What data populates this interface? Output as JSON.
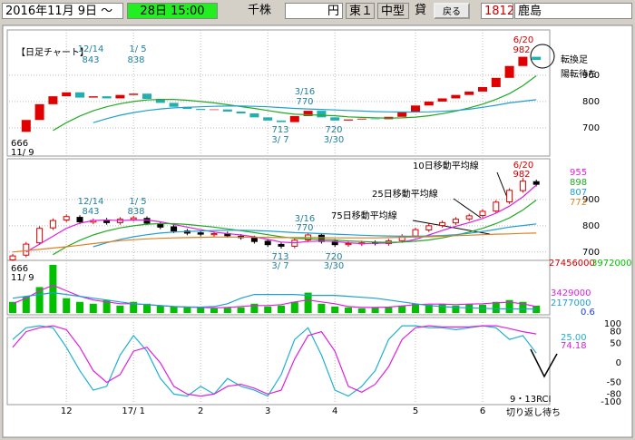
{
  "toolbar": {
    "date_from": "2016年11月 9日 ～",
    "date_to": "28日 15:00",
    "unit": "千株",
    "currency": "円",
    "market": "東１",
    "size": "中型",
    "credit": "貸",
    "back": "戻る",
    "code": "1812",
    "name": "鹿島"
  },
  "chart_data": [
    {
      "type": "brick",
      "title": "【日足チャート】",
      "up_color": "#e00000",
      "down_color": "#20b0b0",
      "values": [
        685,
        730,
        790,
        820,
        835,
        815,
        820,
        812,
        825,
        830,
        810,
        795,
        780,
        772,
        768,
        770,
        762,
        755,
        740,
        728,
        722,
        745,
        765,
        740,
        728,
        732,
        735,
        733,
        742,
        760,
        785,
        800,
        812,
        825,
        838,
        855,
        890,
        935,
        970,
        958
      ],
      "series": [
        {
          "color": "#22aa22",
          "values": [
            null,
            null,
            null,
            690,
            720,
            745,
            765,
            780,
            792,
            800,
            806,
            808,
            808,
            805,
            800,
            795,
            788,
            781,
            774,
            766,
            758,
            752,
            750,
            748,
            746,
            742,
            740,
            738,
            737,
            738,
            741,
            746,
            754,
            764,
            776,
            790,
            808,
            830,
            860,
            898
          ]
        },
        {
          "color": "#20a0d0",
          "values": [
            null,
            null,
            null,
            null,
            null,
            null,
            720,
            735,
            748,
            758,
            766,
            772,
            776,
            778,
            780,
            782,
            783,
            783,
            782,
            780,
            777,
            774,
            772,
            770,
            768,
            766,
            764,
            762,
            761,
            760,
            760,
            761,
            763,
            766,
            771,
            778,
            786,
            795,
            801,
            807
          ]
        }
      ],
      "ylim": [
        600,
        1065
      ],
      "yticks": [
        700,
        800,
        900
      ],
      "grid": true,
      "annotations": [
        "12/14",
        "843",
        "1/ 5",
        "838",
        "3/16",
        "770",
        "713",
        "3/ 7",
        "720",
        "3/30",
        "666",
        "11/ 9",
        "6/20",
        "982",
        "転換足",
        "陽転待ち"
      ]
    },
    {
      "type": "candlestick",
      "up_color": "#e00000",
      "down_color": "#000000",
      "open": [
        670,
        688,
        735,
        792,
        822,
        832,
        814,
        822,
        812,
        824,
        828,
        808,
        796,
        780,
        773,
        766,
        770,
        760,
        754,
        741,
        729,
        722,
        746,
        764,
        741,
        728,
        731,
        736,
        732,
        743,
        761,
        784,
        801,
        811,
        826,
        839,
        856,
        891,
        934,
        968
      ],
      "high": [
        693,
        738,
        798,
        828,
        843,
        840,
        828,
        830,
        833,
        838,
        836,
        816,
        804,
        788,
        781,
        778,
        778,
        768,
        762,
        749,
        737,
        753,
        770,
        772,
        749,
        740,
        743,
        744,
        750,
        768,
        793,
        808,
        820,
        833,
        846,
        863,
        898,
        943,
        982,
        976
      ],
      "low": [
        666,
        680,
        727,
        784,
        814,
        807,
        806,
        804,
        804,
        816,
        802,
        787,
        772,
        764,
        760,
        758,
        754,
        747,
        732,
        720,
        713,
        714,
        738,
        732,
        720,
        720,
        723,
        725,
        724,
        735,
        753,
        776,
        793,
        803,
        818,
        831,
        848,
        883,
        926,
        950
      ],
      "close": [
        685,
        730,
        790,
        820,
        835,
        815,
        820,
        812,
        825,
        830,
        810,
        795,
        780,
        772,
        768,
        770,
        762,
        755,
        740,
        728,
        722,
        745,
        765,
        740,
        728,
        732,
        735,
        733,
        742,
        760,
        785,
        800,
        812,
        825,
        838,
        855,
        890,
        935,
        970,
        958
      ],
      "series": [
        {
          "name": "10日移動平均線",
          "color": "#e020e0",
          "values": [
            null,
            700,
            730,
            760,
            790,
            810,
            820,
            822,
            820,
            822,
            822,
            815,
            805,
            795,
            785,
            776,
            770,
            765,
            758,
            748,
            738,
            735,
            740,
            742,
            740,
            735,
            732,
            733,
            734,
            738,
            748,
            765,
            782,
            798,
            812,
            828,
            848,
            875,
            910,
            955
          ]
        },
        {
          "name": "25日移動平均線",
          "color": "#22aa22",
          "values": [
            null,
            null,
            null,
            690,
            720,
            745,
            765,
            780,
            792,
            800,
            806,
            808,
            808,
            805,
            800,
            795,
            788,
            781,
            774,
            766,
            758,
            752,
            750,
            748,
            746,
            742,
            740,
            738,
            737,
            738,
            741,
            746,
            754,
            764,
            776,
            790,
            808,
            830,
            860,
            898
          ]
        },
        {
          "name": "75日移動平均線",
          "color": "#20a0d0",
          "values": [
            null,
            null,
            null,
            null,
            null,
            null,
            720,
            735,
            748,
            758,
            766,
            772,
            776,
            778,
            780,
            782,
            783,
            783,
            782,
            780,
            777,
            774,
            772,
            770,
            768,
            766,
            764,
            762,
            761,
            760,
            760,
            761,
            763,
            766,
            771,
            778,
            786,
            795,
            801,
            807
          ]
        },
        {
          "color": "#e08020",
          "values": [
            700,
            705,
            710,
            715,
            720,
            726,
            732,
            738,
            743,
            747,
            750,
            752,
            754,
            755,
            756,
            757,
            757,
            757,
            756,
            756,
            755,
            755,
            755,
            755,
            754,
            754,
            754,
            754,
            755,
            756,
            757,
            758,
            760,
            762,
            764,
            766,
            768,
            769,
            771,
            772
          ]
        }
      ],
      "ylim": [
        675,
        1045
      ],
      "yticks": [
        700,
        800,
        900
      ],
      "grid": true,
      "annotations": [
        "12/14",
        "843",
        "1/ 5",
        "838",
        "3/16",
        "770",
        "713",
        "3/ 7",
        "720",
        "3/30",
        "666",
        "11/ 9",
        "6/20",
        "982"
      ]
    },
    {
      "type": "bar",
      "color": "#00c000",
      "ylim": [
        0,
        27456000
      ],
      "values": [
        6000000,
        9000000,
        14000000,
        26000000,
        8000000,
        6000000,
        5000000,
        7000000,
        4000000,
        6000000,
        5000000,
        4000000,
        3500000,
        3000000,
        3000000,
        2500000,
        2800000,
        3000000,
        5000000,
        3500000,
        4000000,
        6000000,
        11000000,
        5000000,
        3500000,
        3000000,
        2500000,
        3000000,
        3000000,
        4000000,
        5000000,
        4500000,
        5000000,
        4000000,
        5000000,
        4500000,
        6000000,
        7000000,
        6000000,
        3972000
      ],
      "series": [
        {
          "color": "#e020e0",
          "values": [
            5000000,
            8000000,
            12000000,
            15000000,
            12000000,
            9000000,
            7000000,
            6000000,
            5000000,
            5000000,
            4500000,
            4000000,
            3500000,
            3200000,
            3000000,
            2800000,
            3000000,
            3500000,
            4000000,
            4000000,
            4500000,
            6000000,
            7000000,
            6000000,
            5000000,
            3500000,
            3000000,
            3000000,
            3200000,
            3800000,
            4500000,
            4800000,
            4800000,
            4500000,
            4800000,
            5000000,
            5500000,
            5800000,
            5000000,
            3429000
          ]
        },
        {
          "color": "#20a0d0",
          "values": [
            8000000,
            9000000,
            10000000,
            11000000,
            10000000,
            9000000,
            8000000,
            7000000,
            6000000,
            5000000,
            4500000,
            4000000,
            3500000,
            3300000,
            3200000,
            3500000,
            5000000,
            8000000,
            10000000,
            10000000,
            10000000,
            10000000,
            9500000,
            9500000,
            9500000,
            9000000,
            8500000,
            8000000,
            7000000,
            6000000,
            5000000,
            4000000,
            3500000,
            3000000,
            2800000,
            2500000,
            2300000,
            2200000,
            2200000,
            2177000
          ]
        }
      ],
      "annotations": [
        "0.6"
      ]
    },
    {
      "type": "line",
      "categories": [
        null,
        null,
        null,
        null,
        "12",
        null,
        null,
        null,
        null,
        "17/ 1",
        null,
        null,
        null,
        null,
        "2",
        null,
        null,
        null,
        null,
        "3",
        null,
        null,
        null,
        null,
        "4",
        null,
        null,
        null,
        null,
        null,
        "5",
        null,
        null,
        null,
        null,
        "6",
        null,
        null,
        null,
        null
      ],
      "series": [
        {
          "color": "#20b0d0",
          "values": [
            60,
            90,
            95,
            90,
            40,
            -20,
            -70,
            -60,
            20,
            70,
            30,
            -40,
            -80,
            -85,
            -60,
            -80,
            -40,
            -60,
            -70,
            -85,
            -30,
            60,
            90,
            20,
            -70,
            -85,
            -60,
            -20,
            60,
            95,
            95,
            90,
            90,
            85,
            90,
            95,
            90,
            60,
            70,
            25
          ],
          "value_labels": [
            null,
            null,
            null,
            null,
            null,
            null,
            null,
            null,
            null,
            null,
            null,
            null,
            null,
            null,
            null,
            null,
            null,
            null,
            null,
            null,
            null,
            null,
            null,
            null,
            null,
            null,
            null,
            null,
            null,
            null,
            null,
            null,
            null,
            null,
            null,
            null,
            null,
            null,
            null,
            "25.00"
          ]
        },
        {
          "color": "#e020e0",
          "values": [
            40,
            80,
            90,
            95,
            85,
            40,
            -20,
            -50,
            -30,
            30,
            40,
            0,
            -60,
            -80,
            -85,
            -80,
            -60,
            -55,
            -65,
            -80,
            -70,
            10,
            70,
            80,
            30,
            -60,
            -75,
            -55,
            -10,
            60,
            90,
            95,
            92,
            92,
            92,
            95,
            95,
            88,
            80,
            74.18
          ]
        }
      ],
      "ylim": [
        -100,
        100
      ],
      "yticks": [
        100,
        80,
        50,
        0,
        -50,
        -80,
        -100
      ],
      "annotations": [
        "9・13RCI",
        "切り返し待ち"
      ]
    }
  ]
}
